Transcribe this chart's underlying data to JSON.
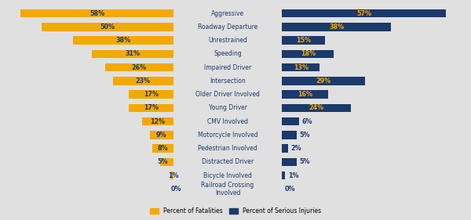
{
  "categories": [
    "Aggressive",
    "Roadway Departure",
    "Unrestrained",
    "Speeding",
    "Impaired Driver",
    "Intersection",
    "Older Driver Involved",
    "Young Driver",
    "CMV Involved",
    "Motorcycle Involved",
    "Pedestrian Involved",
    "Distracted Driver",
    "Bicycle Involved",
    "Railroad Crossing\nInvolved"
  ],
  "fatalities": [
    58,
    50,
    38,
    31,
    26,
    23,
    17,
    17,
    12,
    9,
    8,
    5,
    1,
    0
  ],
  "serious_injuries": [
    57,
    38,
    15,
    18,
    13,
    29,
    16,
    24,
    6,
    5,
    2,
    5,
    1,
    0
  ],
  "fatality_color": "#F5A800",
  "injury_color": "#1B3A6B",
  "background_color": "#E0E0E0",
  "label_color_on_fat": "#1B3A6B",
  "label_color_on_inj": "#F5A800",
  "label_color_small": "#1B3A6B",
  "category_text_color": "#1B3A6B",
  "legend_fatality": "Percent of Fatalities",
  "legend_injury": "Percent of Serious Injuries",
  "bar_height": 0.6,
  "left_xlim": 65,
  "right_xlim": 65,
  "fontsize_bar": 5.8,
  "fontsize_cat": 5.5
}
